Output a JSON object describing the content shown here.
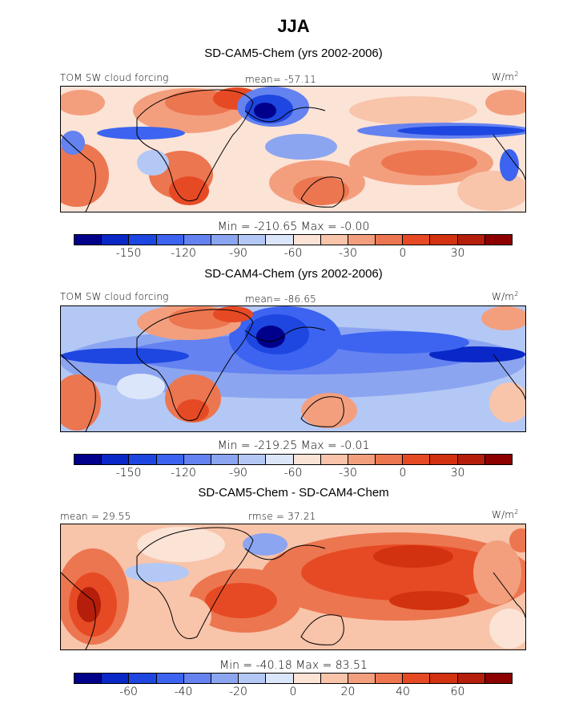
{
  "title": "JJA",
  "units": "W/m",
  "units_exp": "2",
  "variable": "TOM SW cloud forcing",
  "colors": [
    "#00008b",
    "#0a28c8",
    "#1e46e0",
    "#3c64f0",
    "#6482f0",
    "#8ca5f0",
    "#b4c8f5",
    "#dce6fa",
    "#fbe3d6",
    "#f8c4aa",
    "#f39f7e",
    "#ec7650",
    "#e64a24",
    "#d2320f",
    "#b41e0a",
    "#8c0000"
  ],
  "panels": [
    {
      "title": "SD-CAM5-Chem (yrs 2002-2006)",
      "stats_label": "mean= -57.11",
      "min_max": "Min = -210.65 Max =  -0.00",
      "ticks": [
        "-150",
        "-120",
        "-90",
        "-60",
        "-30",
        "0",
        "30"
      ]
    },
    {
      "title": "SD-CAM4-Chem (yrs 2002-2006)",
      "stats_label": "mean= -86.65",
      "min_max": "Min = -219.25 Max =  -0.01",
      "ticks": [
        "-150",
        "-120",
        "-90",
        "-60",
        "-30",
        "0",
        "30"
      ]
    },
    {
      "title": "SD-CAM5-Chem - SD-CAM4-Chem",
      "mean_label": "mean =  29.55",
      "rmse_label": "rmse =  37.21",
      "min_max": "Min = -40.18 Max =  83.51",
      "ticks": [
        "-60",
        "-40",
        "-20",
        "0",
        "20",
        "40",
        "60"
      ]
    }
  ]
}
